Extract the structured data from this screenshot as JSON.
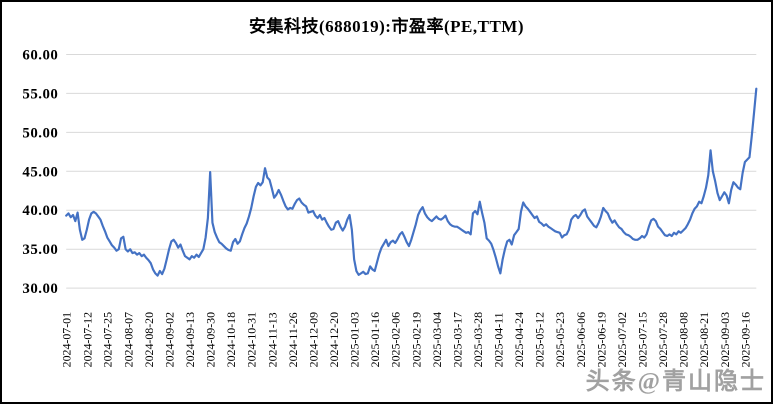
{
  "chart": {
    "title": "安集科技(688019):市盈率(PE,TTM)"
  },
  "watermark": {
    "text": "头条@青山隐士"
  },
  "chart_data": {
    "type": "line",
    "title": "安集科技(688019):市盈率(PE,TTM)",
    "series_name": "市盈率(PE,TTM)",
    "line_color": "#4472c4",
    "grid_color": "#d9d9d9",
    "legend": "none",
    "grid": "horizontal-only",
    "ylim": [
      30,
      60
    ],
    "ytick_step": 5,
    "ytick_labels_top_to_bottom": [
      "60.00",
      "55.00",
      "50.00",
      "45.00",
      "40.00",
      "35.00",
      "30.00"
    ],
    "x_tick_every": 9,
    "x_tick_labels": [
      "2024-07-01",
      "2024-07-12",
      "2024-07-25",
      "2024-08-07",
      "2024-08-20",
      "2024-09-02",
      "2024-09-13",
      "2024-09-30",
      "2024-10-18",
      "2024-10-31",
      "2024-11-13",
      "2024-11-26",
      "2024-12-09",
      "2024-12-20",
      "2025-01-03",
      "2025-01-16",
      "2025-02-06",
      "2025-02-19",
      "2025-03-04",
      "2025-03-17",
      "2025-03-28",
      "2025-04-11",
      "2025-04-24",
      "2025-05-12",
      "2025-05-23",
      "2025-06-06",
      "2025-06-19",
      "2025-07-02",
      "2025-07-15",
      "2025-07-28",
      "2025-08-08",
      "2025-08-21",
      "2025-09-03",
      "2025-09-16"
    ],
    "values": [
      39.3,
      39.6,
      39.1,
      39.4,
      38.6,
      39.7,
      37.5,
      36.2,
      36.4,
      37.5,
      38.8,
      39.6,
      39.8,
      39.6,
      39.2,
      38.8,
      38.0,
      37.3,
      36.5,
      36.0,
      35.5,
      35.2,
      34.8,
      35.0,
      36.4,
      36.6,
      35.0,
      34.7,
      35.0,
      34.5,
      34.6,
      34.3,
      34.5,
      34.1,
      34.3,
      33.9,
      33.6,
      33.2,
      32.4,
      31.9,
      31.6,
      32.2,
      31.8,
      32.5,
      33.7,
      35.0,
      36.0,
      36.2,
      35.8,
      35.2,
      35.6,
      34.8,
      34.1,
      33.9,
      33.7,
      34.1,
      33.9,
      34.3,
      34.0,
      34.5,
      35.0,
      36.5,
      39.0,
      44.9,
      38.4,
      37.2,
      36.5,
      35.9,
      35.7,
      35.4,
      35.1,
      34.9,
      34.8,
      35.9,
      36.3,
      35.7,
      36.0,
      36.9,
      37.7,
      38.3,
      39.2,
      40.3,
      41.8,
      43.0,
      43.5,
      43.2,
      43.6,
      45.4,
      44.2,
      43.9,
      42.8,
      41.6,
      42.0,
      42.6,
      42.0,
      41.2,
      40.5,
      40.1,
      40.3,
      40.2,
      40.8,
      41.3,
      41.5,
      41.0,
      40.7,
      40.5,
      39.7,
      39.8,
      39.9,
      39.3,
      39.0,
      39.4,
      38.8,
      39.0,
      38.4,
      37.9,
      37.5,
      37.6,
      38.4,
      38.6,
      37.9,
      37.4,
      37.9,
      38.8,
      39.4,
      37.5,
      33.7,
      32.2,
      31.7,
      31.9,
      32.1,
      31.8,
      31.9,
      32.8,
      32.4,
      32.2,
      33.3,
      34.4,
      35.2,
      35.7,
      36.2,
      35.4,
      35.9,
      36.1,
      35.8,
      36.3,
      36.9,
      37.2,
      36.6,
      35.9,
      35.4,
      36.2,
      37.2,
      38.2,
      39.4,
      40.0,
      40.4,
      39.6,
      39.1,
      38.8,
      38.6,
      38.9,
      39.2,
      38.9,
      38.8,
      39.0,
      39.3,
      38.6,
      38.2,
      38.0,
      37.9,
      37.9,
      37.7,
      37.5,
      37.3,
      37.1,
      37.2,
      36.9,
      39.6,
      39.9,
      39.5,
      41.1,
      39.7,
      38.4,
      36.4,
      36.1,
      35.7,
      34.9,
      33.9,
      32.8,
      31.9,
      33.7,
      35.0,
      36.0,
      36.2,
      35.6,
      36.8,
      37.2,
      37.6,
      39.8,
      41.0,
      40.5,
      40.2,
      39.8,
      39.4,
      39.0,
      39.2,
      38.5,
      38.3,
      38.0,
      38.2,
      37.9,
      37.7,
      37.5,
      37.3,
      37.2,
      37.1,
      36.5,
      36.8,
      36.9,
      37.5,
      38.8,
      39.2,
      39.4,
      39.0,
      39.4,
      39.9,
      40.1,
      39.2,
      38.8,
      38.4,
      38.0,
      37.8,
      38.4,
      39.2,
      40.3,
      39.9,
      39.6,
      38.9,
      38.4,
      38.7,
      38.2,
      37.8,
      37.6,
      37.2,
      36.9,
      36.8,
      36.6,
      36.3,
      36.2,
      36.2,
      36.4,
      36.7,
      36.5,
      36.9,
      37.9,
      38.7,
      38.9,
      38.6,
      37.9,
      37.6,
      37.2,
      36.8,
      36.7,
      36.9,
      36.7,
      37.1,
      36.9,
      37.3,
      37.1,
      37.4,
      37.7,
      38.2,
      38.8,
      39.6,
      40.2,
      40.5,
      41.1,
      40.9,
      41.8,
      42.9,
      44.5,
      47.7,
      45.0,
      43.7,
      42.2,
      41.3,
      41.8,
      42.3,
      41.9,
      40.9,
      42.6,
      43.6,
      43.3,
      42.9,
      42.7,
      44.8,
      46.2,
      46.5,
      46.8,
      49.5,
      52.5,
      55.6
    ]
  }
}
